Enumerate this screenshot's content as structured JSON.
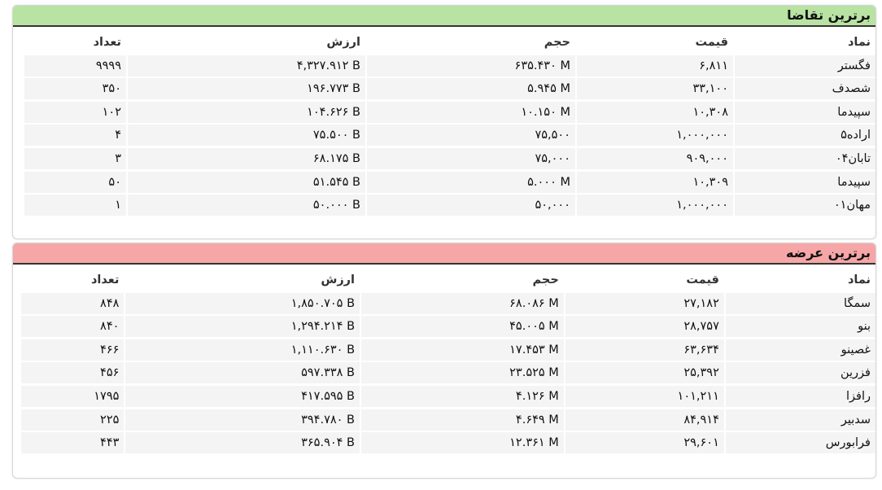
{
  "panels": [
    {
      "title": "برترین تقاضا",
      "columns": [
        "نماد",
        "قیمت",
        "حجم",
        "ارزش",
        "تعداد"
      ],
      "rows": [
        [
          "فگستر",
          "۶,۸۱۱",
          "۶۳۵.۴۳۰ M",
          "۴,۳۲۷.۹۱۲ B",
          "۹۹۹۹"
        ],
        [
          "شصدف",
          "۳۳,۱۰۰",
          "۵.۹۴۵ M",
          "۱۹۶.۷۷۳ B",
          "۳۵۰"
        ],
        [
          "سپیدما",
          "۱۰,۳۰۸",
          "۱۰.۱۵۰ M",
          "۱۰۴.۶۲۶ B",
          "۱۰۲"
        ],
        [
          "اراده۵",
          "۱,۰۰۰,۰۰۰",
          "۷۵,۵۰۰",
          "۷۵.۵۰۰ B",
          "۴"
        ],
        [
          "تابان۰۴",
          "۹۰۹,۰۰۰",
          "۷۵,۰۰۰",
          "۶۸.۱۷۵ B",
          "۳"
        ],
        [
          "سپیدما",
          "۱۰,۳۰۹",
          "۵.۰۰۰ M",
          "۵۱.۵۴۵ B",
          "۵۰"
        ],
        [
          "مهان۰۱",
          "۱,۰۰۰,۰۰۰",
          "۵۰,۰۰۰",
          "۵۰.۰۰۰ B",
          "۱"
        ]
      ]
    },
    {
      "title": "برترین عرضه",
      "columns": [
        "نماد",
        "قیمت",
        "حجم",
        "ارزش",
        "تعداد"
      ],
      "rows": [
        [
          "سمگا",
          "۲۷,۱۸۲",
          "۶۸.۰۸۶ M",
          "۱,۸۵۰.۷۰۵ B",
          "۸۴۸"
        ],
        [
          "بنو",
          "۲۸,۷۵۷",
          "۴۵.۰۰۵ M",
          "۱,۲۹۴.۲۱۴ B",
          "۸۴۰"
        ],
        [
          "غصینو",
          "۶۳,۶۳۴",
          "۱۷.۴۵۳ M",
          "۱,۱۱۰.۶۳۰ B",
          "۴۶۶"
        ],
        [
          "فزرین",
          "۲۵,۳۹۲",
          "۲۳.۵۲۵ M",
          "۵۹۷.۳۳۸ B",
          "۴۵۶"
        ],
        [
          "رافزا",
          "۱۰۱,۲۱۱",
          "۴.۱۲۶ M",
          "۴۱۷.۵۹۵ B",
          "۱۷۹۵"
        ],
        [
          "سدبیر",
          "۸۴,۹۱۴",
          "۴.۶۴۹ M",
          "۳۹۴.۷۸۰ B",
          "۲۲۵"
        ],
        [
          "فرابورس",
          "۲۹,۶۰۱",
          "۱۲.۳۶۱ M",
          "۳۶۵.۹۰۴ B",
          "۴۴۳"
        ]
      ]
    }
  ]
}
